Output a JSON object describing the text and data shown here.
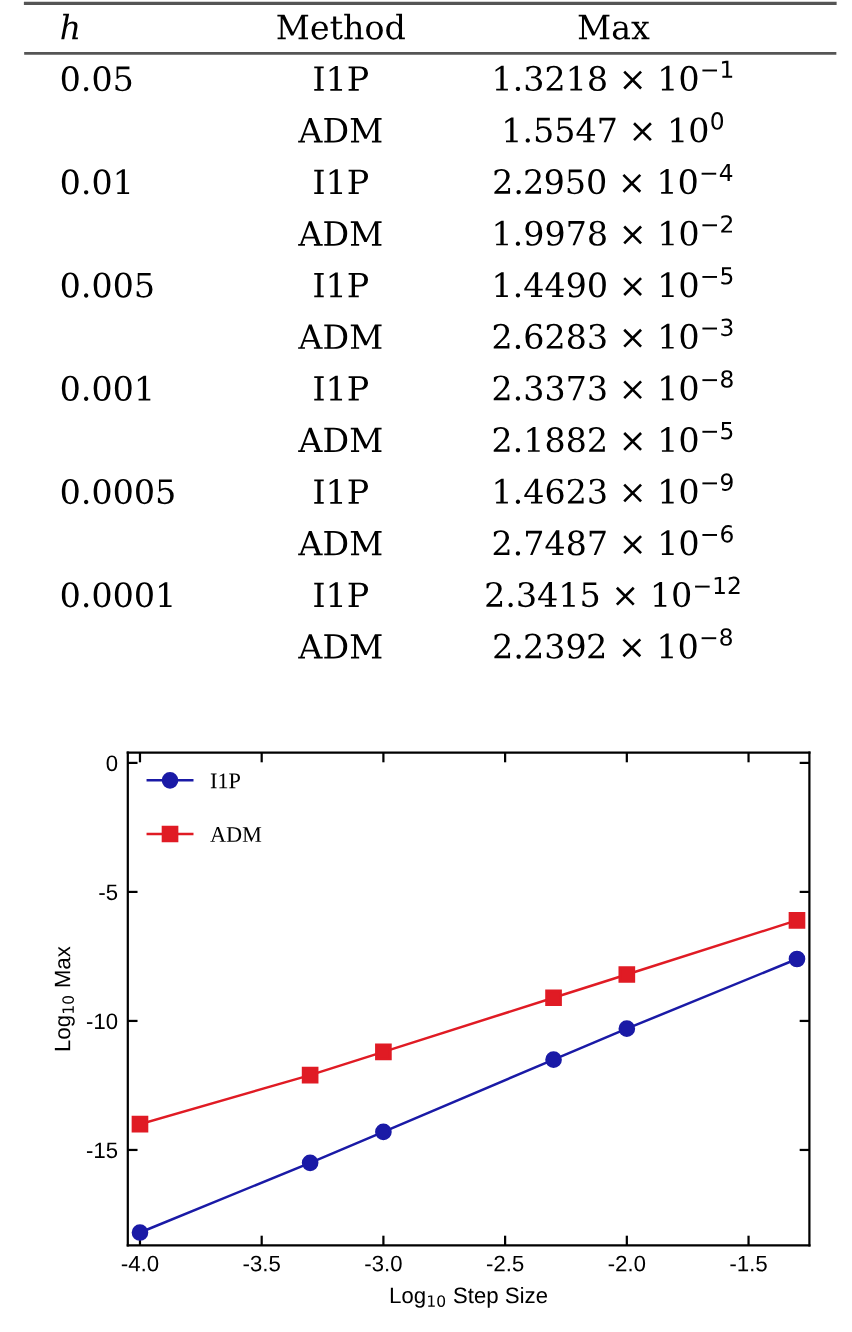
{
  "chart_data": [
    {
      "type": "other",
      "annotations": [
        "h",
        "Method",
        "Max",
        "0.05",
        "I1P",
        "1.3218 × 10$^{−1}$",
        "ADM",
        "1.5547 × 10$^{0}$",
        "0.01",
        "I1P",
        "2.2950 × 10$^{−4}$",
        "ADM",
        "1.9978 × 10$^{−2}$",
        "0.005",
        "I1P",
        "1.4490 × 10$^{−5}$",
        "ADM",
        "2.6283 × 10$^{−3}$",
        "0.001",
        "I1P",
        "2.3373 × 10$^{−8}$",
        "ADM",
        "2.1882 × 10$^{−5}$",
        "0.0005",
        "I1P",
        "1.4623 × 10$^{−9}$",
        "ADM",
        "2.7487 × 10$^{−6}$",
        "0.0001",
        "I1P",
        "2.3415 × 10$^{−12}$",
        "ADM",
        "2.2392 × 10$^{−8}$"
      ]
    },
    {
      "type": "line",
      "xlabel": "Log$_{10}$ Step Size",
      "ylabel": "Log$_{10}$ Max",
      "x": [
        -4.0,
        -3.301,
        -3.0,
        -2.301,
        -2.0,
        -1.301
      ],
      "series": [
        {
          "name": "I1P",
          "color": "#1a1aa6",
          "marker": "circle",
          "values": [
            -18.2,
            -15.5,
            -14.3,
            -11.5,
            -10.3,
            -7.6
          ]
        },
        {
          "name": "ADM",
          "color": "#e01b24",
          "marker": "square",
          "values": [
            -14.0,
            -12.1,
            -11.2,
            -9.1,
            -8.2,
            -6.1
          ]
        }
      ],
      "xlim": [
        -4.05,
        -1.25
      ],
      "ylim": [
        -18.7,
        0.4
      ],
      "xticks": [
        {
          "value": -4.0,
          "label": "-4.0"
        },
        {
          "value": -3.5,
          "label": "-3.5"
        },
        {
          "value": -3.0,
          "label": "-3.0"
        },
        {
          "value": -2.5,
          "label": "-2.5"
        },
        {
          "value": -2.0,
          "label": "-2.0"
        },
        {
          "value": -1.5,
          "label": "-1.5"
        }
      ],
      "yticks": [
        0,
        -5,
        -10,
        -15
      ],
      "grid": false,
      "legend": "top left",
      "line_style": "solid"
    }
  ]
}
